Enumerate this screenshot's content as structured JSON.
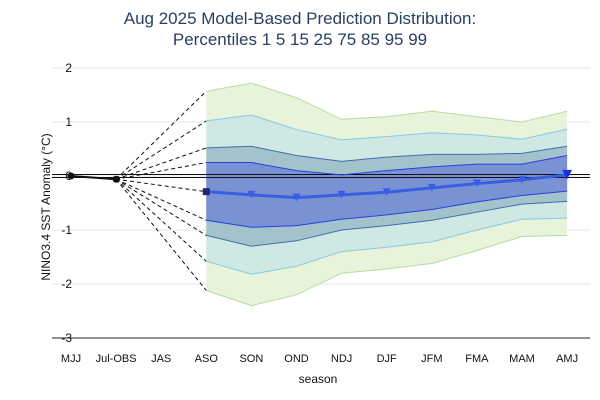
{
  "chart_data": {
    "type": "area",
    "title_line1": "Aug 2025 Model-Based Prediction Distribution:",
    "title_line2": "Percentiles 1 5 15 25 75 85 95 99",
    "xlabel": "season",
    "ylabel": "NINO3.4 SST Anomaly (°C)",
    "ylim": [
      -3,
      2
    ],
    "yticks": [
      2,
      1,
      0,
      -1,
      -2,
      -3
    ],
    "grid": true,
    "categories": [
      "MJJ",
      "Jul-OBS",
      "JAS",
      "ASO",
      "SON",
      "OND",
      "NDJ",
      "DJF",
      "JFM",
      "FMA",
      "MAM",
      "AMJ"
    ],
    "observed": {
      "name": "observed",
      "x": [
        "MJJ",
        "Jul-OBS"
      ],
      "values": [
        0.0,
        -0.06
      ]
    },
    "forecast_categories": [
      "ASO",
      "SON",
      "OND",
      "NDJ",
      "DJF",
      "JFM",
      "FMA",
      "MAM",
      "AMJ"
    ],
    "median": {
      "name": "median",
      "values": [
        -0.29,
        -0.35,
        -0.4,
        -0.35,
        -0.3,
        -0.22,
        -0.14,
        -0.07,
        0.02
      ]
    },
    "percentiles": [
      {
        "name": "p1",
        "values": [
          -2.12,
          -2.4,
          -2.2,
          -1.8,
          -1.72,
          -1.62,
          -1.38,
          -1.12,
          -1.1
        ]
      },
      {
        "name": "p5",
        "values": [
          -1.58,
          -1.82,
          -1.67,
          -1.4,
          -1.32,
          -1.22,
          -1.0,
          -0.8,
          -0.78
        ]
      },
      {
        "name": "p15",
        "values": [
          -1.1,
          -1.3,
          -1.2,
          -1.0,
          -0.92,
          -0.82,
          -0.67,
          -0.52,
          -0.47
        ]
      },
      {
        "name": "p25",
        "values": [
          -0.82,
          -0.95,
          -0.92,
          -0.8,
          -0.72,
          -0.62,
          -0.48,
          -0.36,
          -0.28
        ]
      },
      {
        "name": "p75",
        "values": [
          0.25,
          0.25,
          0.1,
          0.02,
          0.1,
          0.17,
          0.22,
          0.22,
          0.38
        ]
      },
      {
        "name": "p85",
        "values": [
          0.52,
          0.55,
          0.38,
          0.27,
          0.35,
          0.4,
          0.4,
          0.42,
          0.55
        ]
      },
      {
        "name": "p95",
        "values": [
          1.02,
          1.13,
          0.86,
          0.67,
          0.73,
          0.8,
          0.76,
          0.68,
          0.87
        ]
      },
      {
        "name": "p99",
        "values": [
          1.57,
          1.72,
          1.45,
          1.05,
          1.1,
          1.2,
          1.1,
          1.0,
          1.2
        ]
      }
    ],
    "colors": {
      "band_1_99": "#e8f3dc",
      "band_5_95": "#cfe8e3",
      "band_15_85": "#a3c3cc",
      "band_25_75": "#7892d4",
      "edge_1_99": "#b5dca0",
      "edge_5_95": "#88c9de",
      "edge_15_85": "#3e6fa7",
      "edge_25_75": "#2a3fdc",
      "median": "#3a5ee0",
      "observed": "#111111"
    }
  }
}
